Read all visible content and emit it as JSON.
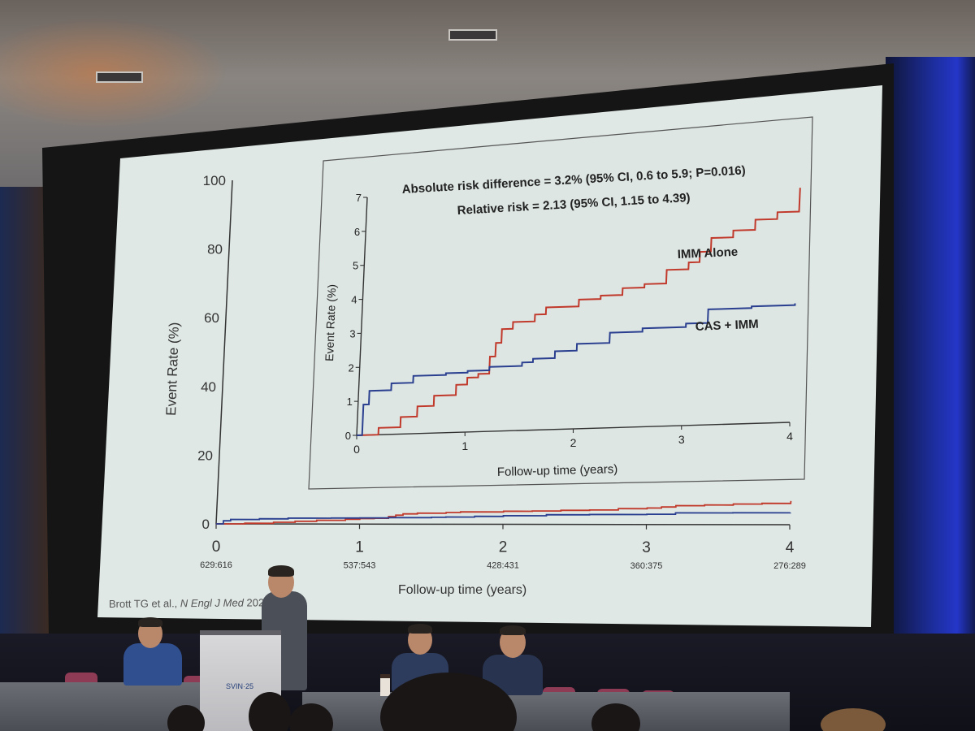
{
  "slide": {
    "main_y_label": "Event Rate (%)",
    "main_x_label": "Follow-up time (years)",
    "main_y_ticks": [
      "0",
      "20",
      "40",
      "60",
      "80",
      "100"
    ],
    "main_x_ticks": [
      "0",
      "1",
      "2",
      "3",
      "4"
    ],
    "at_risk": [
      "629:616",
      "537:543",
      "428:431",
      "360:375",
      "276:289"
    ],
    "citation_authors": "Brott TG et al., ",
    "citation_journal": "N Engl J Med",
    "citation_year": " 2025",
    "inset": {
      "line1": "Absolute risk difference = 3.2% (95% CI, 0.6 to 5.9; P=0.016)",
      "line2": "Relative risk = 2.13 (95% CI, 1.15 to 4.39)",
      "y_label": "Event Rate (%)",
      "x_label": "Follow-up time (years)",
      "y_ticks": [
        "0",
        "1",
        "2",
        "3",
        "4",
        "5",
        "6",
        "7"
      ],
      "x_ticks": [
        "0",
        "1",
        "2",
        "3",
        "4"
      ],
      "series_imm": "IMM Alone",
      "series_cas": "CAS + IMM"
    },
    "podium_logo": "SVIN·25"
  },
  "colors": {
    "imm_alone": "#c0392b",
    "cas_imm": "#2a3f8f",
    "slide_bg": "#dfe8e4",
    "inset_bg": "#dde6e3"
  },
  "chart_data": {
    "type": "line",
    "x_unit": "years",
    "y_unit": "percent",
    "ylim": [
      0,
      7
    ],
    "xlim": [
      0,
      4
    ],
    "series": [
      {
        "name": "IMM Alone",
        "x": [
          0,
          0.2,
          0.4,
          0.55,
          0.7,
          0.9,
          1.0,
          1.1,
          1.2,
          1.25,
          1.3,
          1.4,
          1.6,
          1.7,
          2.0,
          2.2,
          2.4,
          2.6,
          2.8,
          3.0,
          3.1,
          3.2,
          3.4,
          3.6,
          3.8,
          4.0
        ],
        "y": [
          0,
          0.2,
          0.5,
          0.8,
          1.1,
          1.4,
          1.6,
          1.7,
          2.2,
          2.6,
          3.0,
          3.2,
          3.4,
          3.6,
          3.8,
          3.9,
          4.1,
          4.2,
          4.6,
          4.8,
          5.1,
          5.5,
          5.7,
          6.0,
          6.2,
          6.9
        ]
      },
      {
        "name": "CAS + IMM",
        "x": [
          0,
          0.05,
          0.1,
          0.3,
          0.5,
          0.8,
          1.0,
          1.2,
          1.5,
          1.6,
          1.8,
          2.0,
          2.3,
          2.6,
          3.0,
          3.2,
          3.6,
          4.0
        ],
        "y": [
          0,
          0.9,
          1.3,
          1.5,
          1.7,
          1.75,
          1.8,
          1.9,
          2.0,
          2.1,
          2.3,
          2.5,
          2.8,
          2.9,
          3.0,
          3.4,
          3.45,
          3.5
        ]
      }
    ]
  }
}
